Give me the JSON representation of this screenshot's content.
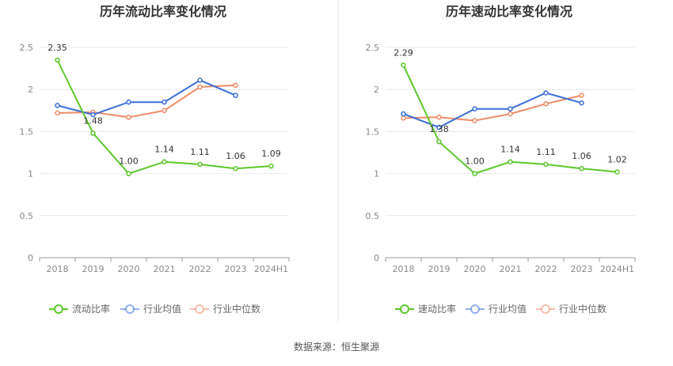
{
  "source_text": "数据来源：恒生聚源",
  "colors": {
    "company": "#5cc72a",
    "industry_avg": "#3a6fd8",
    "industry_median": "#f08b67",
    "grid": "#e6e8ee",
    "axis": "#999999",
    "divider": "#e5e5e5"
  },
  "chart_data": [
    {
      "type": "line",
      "title": "历年流动比率变化情况",
      "categories": [
        "2018",
        "2019",
        "2020",
        "2021",
        "2022",
        "2023",
        "2024H1"
      ],
      "yticks": [
        "0",
        "0.5",
        "1",
        "1.5",
        "2",
        "2.5"
      ],
      "ylim": [
        0,
        2.5
      ],
      "grid": true,
      "legend_position": "bottom",
      "series": [
        {
          "name": "流动比率",
          "role": "company",
          "values": [
            2.35,
            1.48,
            1.0,
            1.14,
            1.11,
            1.06,
            1.09
          ],
          "labels": [
            "2.35",
            "1.48",
            "1.00",
            "1.14",
            "1.11",
            "1.06",
            "1.09"
          ]
        },
        {
          "name": "行业均值",
          "role": "industry_avg",
          "values": [
            1.81,
            1.7,
            1.85,
            1.85,
            2.11,
            1.93,
            null
          ]
        },
        {
          "name": "行业中位数",
          "role": "industry_median",
          "values": [
            1.72,
            1.73,
            1.67,
            1.75,
            2.03,
            2.05,
            null
          ]
        }
      ]
    },
    {
      "type": "line",
      "title": "历年速动比率变化情况",
      "categories": [
        "2018",
        "2019",
        "2020",
        "2021",
        "2022",
        "2023",
        "2024H1"
      ],
      "yticks": [
        "0",
        "0.5",
        "1",
        "1.5",
        "2",
        "2.5"
      ],
      "ylim": [
        0,
        2.5
      ],
      "grid": true,
      "legend_position": "bottom",
      "series": [
        {
          "name": "速动比率",
          "role": "company",
          "values": [
            2.29,
            1.38,
            1.0,
            1.14,
            1.11,
            1.06,
            1.02
          ],
          "labels": [
            "2.29",
            "1.38",
            "1.00",
            "1.14",
            "1.11",
            "1.06",
            "1.02"
          ]
        },
        {
          "name": "行业均值",
          "role": "industry_avg",
          "values": [
            1.71,
            1.55,
            1.77,
            1.77,
            1.96,
            1.84,
            null
          ]
        },
        {
          "name": "行业中位数",
          "role": "industry_median",
          "values": [
            1.66,
            1.67,
            1.63,
            1.71,
            1.83,
            1.93,
            null
          ]
        }
      ]
    }
  ]
}
